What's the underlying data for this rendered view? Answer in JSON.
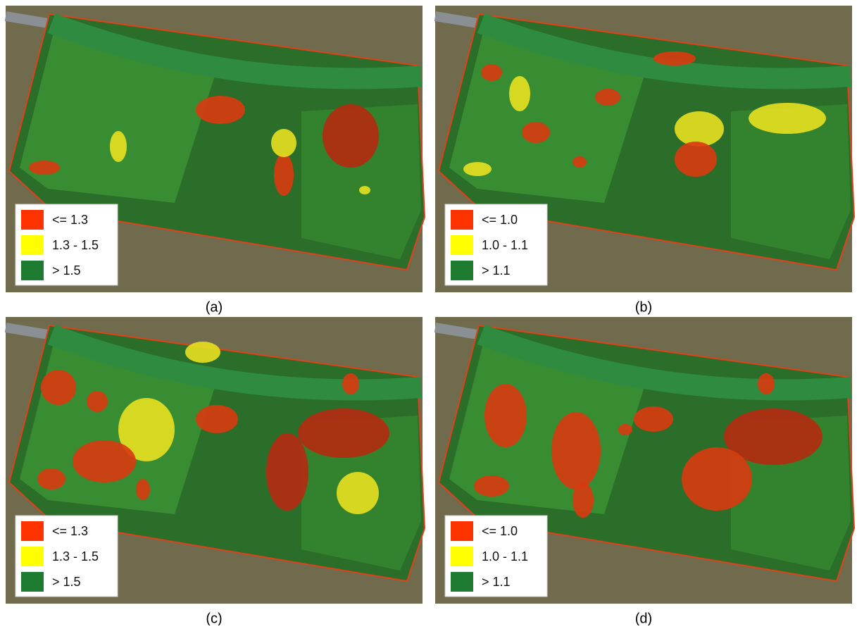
{
  "panels": [
    {
      "caption": "(a)",
      "legend": [
        {
          "label": "<= 1.3",
          "color": "#ff3300"
        },
        {
          "label": "1.3 - 1.5",
          "color": "#ffff00"
        },
        {
          "label": "> 1.5",
          "color": "#1e7b32"
        }
      ]
    },
    {
      "caption": "(b)",
      "legend": [
        {
          "label": "<= 1.0",
          "color": "#ff3300"
        },
        {
          "label": "1.0 - 1.1",
          "color": "#ffff00"
        },
        {
          "label": "> 1.1",
          "color": "#1e7b32"
        }
      ]
    },
    {
      "caption": "(c)",
      "legend": [
        {
          "label": "<= 1.3",
          "color": "#ff3300"
        },
        {
          "label": "1.3 - 1.5",
          "color": "#ffff00"
        },
        {
          "label": "> 1.5",
          "color": "#1e7b32"
        }
      ]
    },
    {
      "caption": "(d)",
      "legend": [
        {
          "label": "<= 1.0",
          "color": "#ff3300"
        },
        {
          "label": "1.0 - 1.1",
          "color": "#ffff00"
        },
        {
          "label": "> 1.1",
          "color": "#1e7b32"
        }
      ]
    }
  ]
}
